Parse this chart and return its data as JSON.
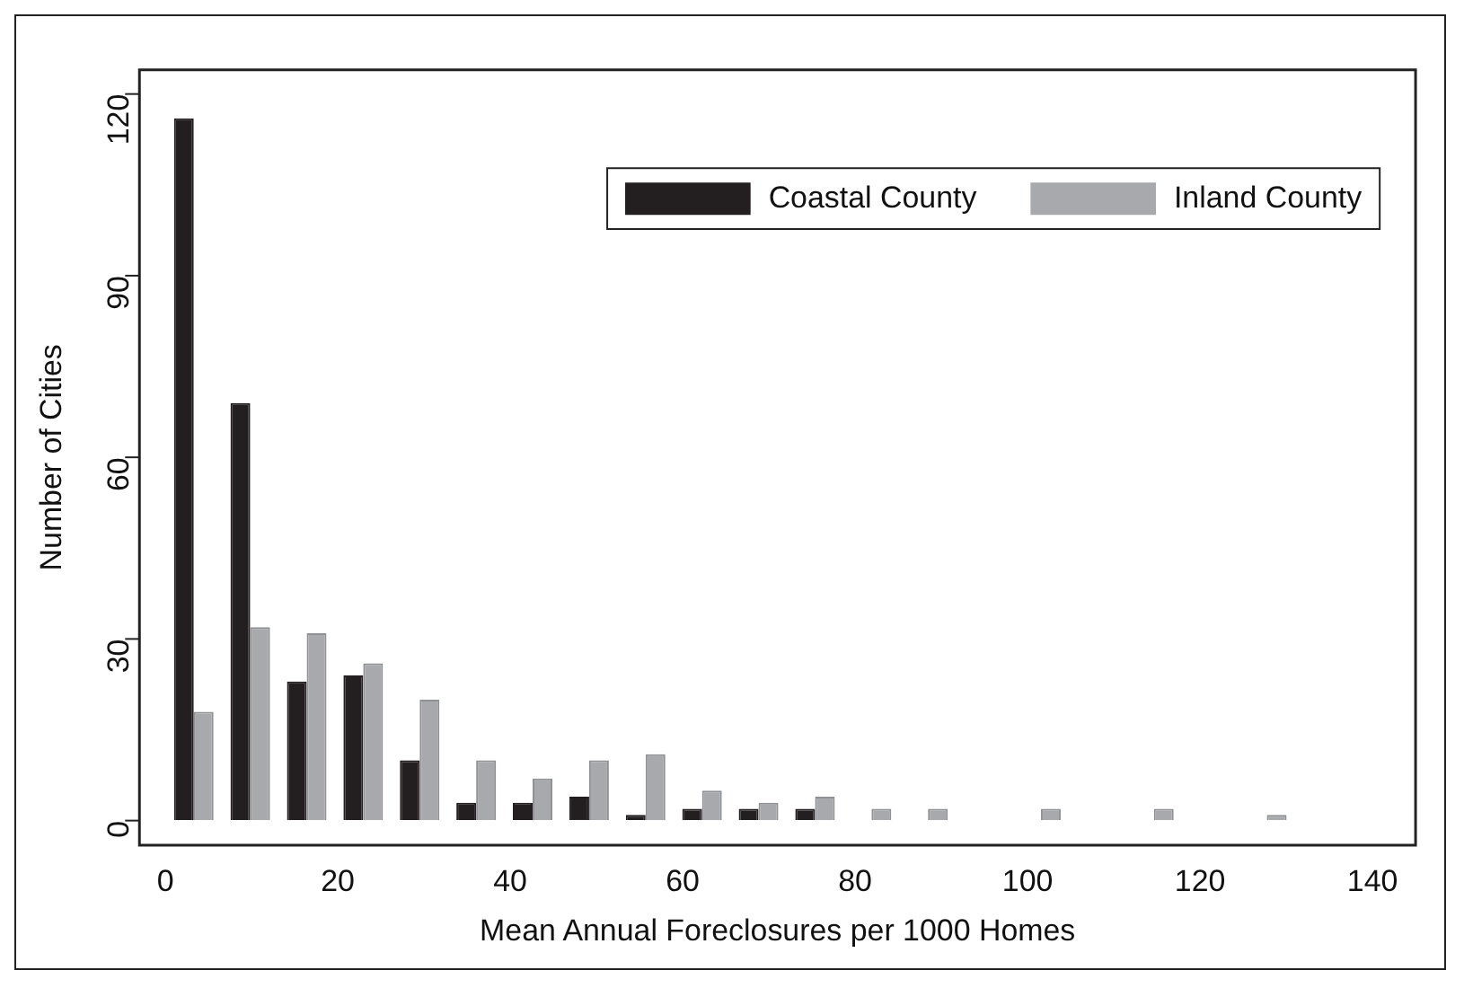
{
  "chart_data": {
    "type": "bar",
    "xlabel": "Mean Annual Foreclosures per 1000 Homes",
    "ylabel": "Number of Cities",
    "x": [
      3.3,
      9.85,
      16.4,
      22.95,
      29.5,
      36.05,
      42.6,
      49.15,
      55.7,
      62.25,
      68.8,
      75.35,
      81.9,
      88.45,
      95,
      101.55,
      108.1,
      114.65,
      121.2,
      127.75
    ],
    "series": [
      {
        "name": "Coastal County",
        "color": "#231f20",
        "values": [
          116,
          69,
          23,
          24,
          10,
          3,
          3,
          4,
          1,
          2,
          2,
          2,
          0,
          0,
          0,
          0,
          0,
          0,
          0,
          0
        ]
      },
      {
        "name": "Inland County",
        "color": "#a7a9ac",
        "values": [
          18,
          32,
          31,
          26,
          20,
          10,
          7,
          10,
          11,
          5,
          3,
          4,
          2,
          2,
          0,
          2,
          0,
          2,
          0,
          1
        ]
      }
    ],
    "xlim": [
      -3,
      145
    ],
    "xticks": [
      0,
      20,
      40,
      60,
      80,
      100,
      120,
      140
    ],
    "ylim": [
      -4,
      124
    ],
    "yticks": [
      0,
      30,
      60,
      90,
      120
    ],
    "grid": false,
    "legend": "top right"
  }
}
